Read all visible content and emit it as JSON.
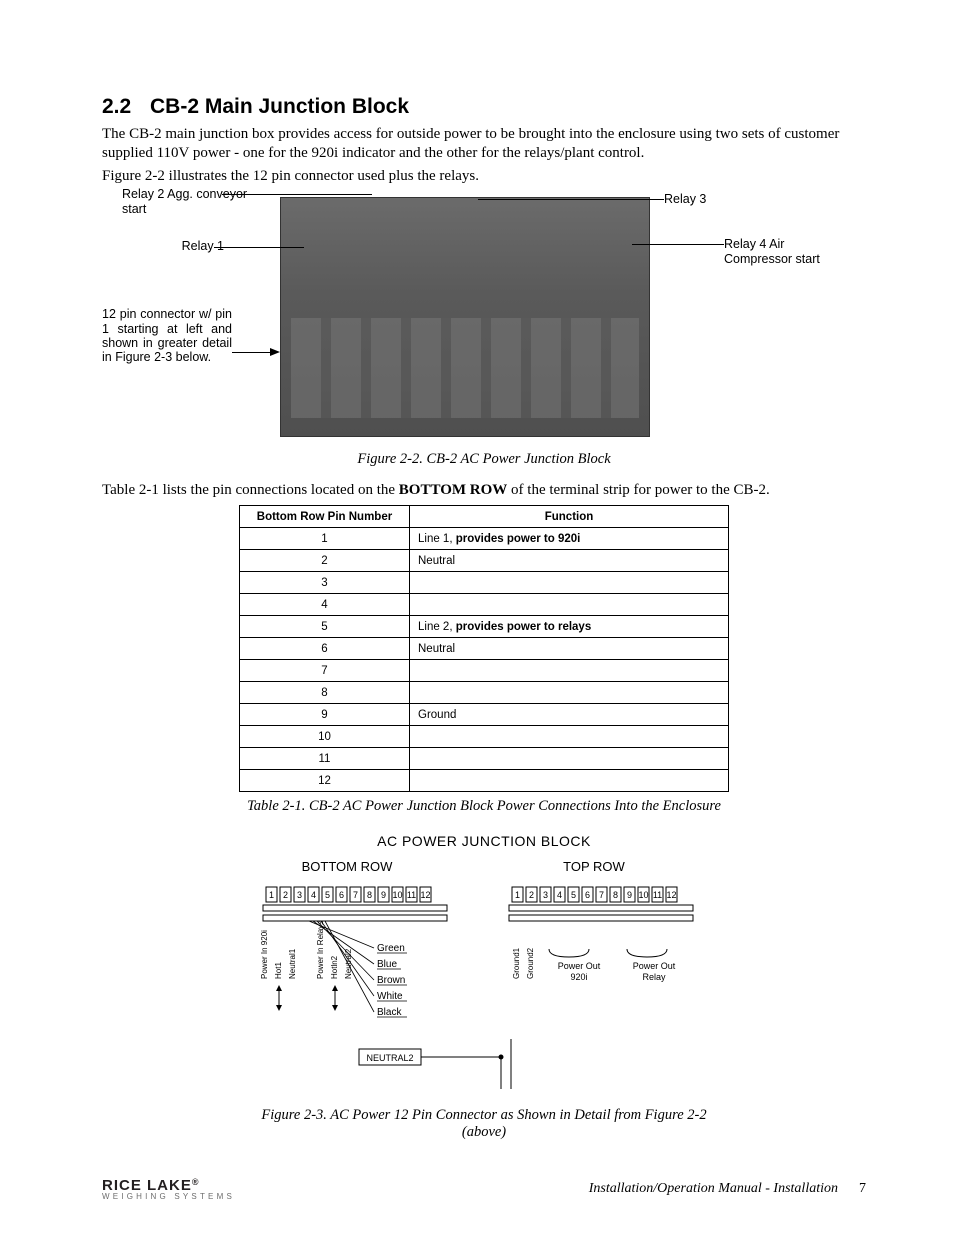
{
  "heading": {
    "number": "2.2",
    "title": "CB-2 Main Junction Block"
  },
  "para1": "The CB-2 main junction box provides access for outside power to be brought into the enclosure using two sets of customer supplied 110V power - one for the 920i indicator and the other for the relays/plant control.",
  "para2": "Figure 2-2 illustrates the 12 pin connector used plus the relays.",
  "figure22": {
    "callouts": {
      "relay2": "Relay 2 Agg. conveyor start",
      "relay1": "Relay 1",
      "relay3": "Relay 3",
      "relay4": "Relay 4 Air Compressor start",
      "pin12": "12 pin connector w/ pin 1 starting at left and shown in greater detail in Figure 2-3 below."
    },
    "caption": "Figure 2-2. CB-2 AC Power Junction Block",
    "photo_bg": "#5e5e5e"
  },
  "table_intro_pre": "Table 2-1 lists the pin connections located on the ",
  "table_intro_bold": "BOTTOM ROW",
  "table_intro_post": " of the terminal strip for power to the CB-2.",
  "table": {
    "headers": {
      "col1": "Bottom Row Pin Number",
      "col2": "Function"
    },
    "rows": [
      {
        "pin": "1",
        "func_pre": "Line 1, ",
        "func_bold": "provides power to 920i"
      },
      {
        "pin": "2",
        "func_pre": "Neutral",
        "func_bold": ""
      },
      {
        "pin": "3",
        "func_pre": "",
        "func_bold": ""
      },
      {
        "pin": "4",
        "func_pre": "",
        "func_bold": ""
      },
      {
        "pin": "5",
        "func_pre": "Line 2, ",
        "func_bold": "provides power to relays"
      },
      {
        "pin": "6",
        "func_pre": "Neutral",
        "func_bold": ""
      },
      {
        "pin": "7",
        "func_pre": "",
        "func_bold": ""
      },
      {
        "pin": "8",
        "func_pre": "",
        "func_bold": ""
      },
      {
        "pin": "9",
        "func_pre": "Ground",
        "func_bold": ""
      },
      {
        "pin": "10",
        "func_pre": "",
        "func_bold": ""
      },
      {
        "pin": "11",
        "func_pre": "",
        "func_bold": ""
      },
      {
        "pin": "12",
        "func_pre": "",
        "func_bold": ""
      }
    ],
    "caption": "Table 2-1. CB-2 AC Power Junction Block Power Connections Into the Enclosure"
  },
  "diagram": {
    "title": "AC POWER JUNCTION BLOCK",
    "left_header": "BOTTOM ROW",
    "right_header": "TOP ROW",
    "pins": [
      "1",
      "2",
      "3",
      "4",
      "5",
      "6",
      "7",
      "8",
      "9",
      "10",
      "11",
      "12"
    ],
    "left_vlabels": [
      "Power In 920i",
      "Hot1",
      "Neutral1",
      "",
      "Power In Relays",
      "Hotln2",
      "Neutral2"
    ],
    "wire_labels": [
      "Green",
      "Blue",
      "Brown",
      "White",
      "Black"
    ],
    "neutral_box": "NEUTRAL2",
    "right_labels": {
      "ground1": "Ground1",
      "ground2": "Ground2",
      "pout920": "Power Out 920i",
      "poutrelay": "Power Out Relay"
    },
    "caption": "Figure 2-3. AC Power 12 Pin Connector as Shown in Detail from Figure 2-2 (above)",
    "colors": {
      "line": "#000000",
      "box_fill": "#ffffff",
      "font": "Arial"
    },
    "font_sizes": {
      "title": 14,
      "header": 13,
      "pin": 9,
      "label": 9
    }
  },
  "footer": {
    "logo_main": "RICE LAKE",
    "logo_reg": "®",
    "logo_sub": "WEIGHING SYSTEMS",
    "text": "Installation/Operation Manual - Installation",
    "page": "7"
  }
}
